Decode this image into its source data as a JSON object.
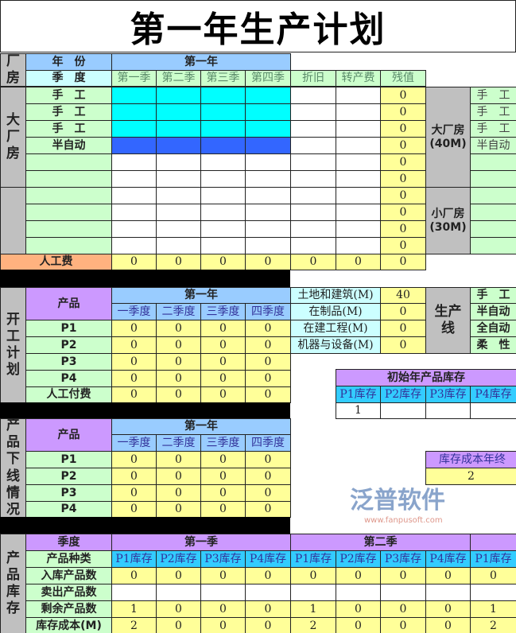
{
  "title": "第一年生产计划",
  "colors": {
    "label_green": "#ccffcc",
    "value_yellow": "#ffff99",
    "header_blue": "#99ccff",
    "light_cyan": "#ccffff",
    "line_cyan": "#00ffff",
    "line_blue": "#3366ff",
    "side_grey": "#c0c0c0",
    "labor_orange": "#ffb27f",
    "purple": "#cc99ff",
    "teal": "#33ccff"
  },
  "factory": {
    "side_label": "厂房",
    "year_label": "年　份",
    "year": "第一年",
    "season_label": "季　度",
    "quarters": [
      "第一季",
      "第二季",
      "第三季",
      "第四季"
    ],
    "depreciation": "折旧",
    "transfer_fee": "转产费",
    "residual": "残值",
    "big_side": "大厂房",
    "rows": [
      "手　工",
      "手　工",
      "手　工",
      "半自动",
      "",
      "",
      "",
      "",
      "",
      ""
    ],
    "residual_values": [
      "0",
      "0",
      "0",
      "0",
      "0",
      "0",
      "0",
      "0",
      "0",
      "0"
    ],
    "labor_label": "人工费",
    "labor_values": [
      "0",
      "0",
      "0",
      "0",
      "0",
      "0",
      "0"
    ],
    "big_room": "大厂房\n(40M)",
    "small_room": "小厂房\n(30M)",
    "right_rows": [
      "手　工",
      "手　工",
      "手　工",
      "半自动",
      "",
      "",
      "",
      "",
      "",
      ""
    ]
  },
  "start_plan": {
    "side_label": "开工计划",
    "product_label": "产品",
    "year": "第一年",
    "quarters": [
      "一季度",
      "二季度",
      "三季度",
      "四季度"
    ],
    "rows": [
      {
        "label": "P1",
        "values": [
          "0",
          "0",
          "0",
          "0"
        ]
      },
      {
        "label": "P2",
        "values": [
          "0",
          "0",
          "0",
          "0"
        ]
      },
      {
        "label": "P3",
        "values": [
          "0",
          "0",
          "0",
          "0"
        ]
      },
      {
        "label": "P4",
        "values": [
          "0",
          "0",
          "0",
          "0"
        ]
      },
      {
        "label": "人工付费",
        "values": [
          "0",
          "0",
          "0",
          "0"
        ]
      }
    ],
    "assets": [
      {
        "label": "土地和建筑(M)",
        "value": "40"
      },
      {
        "label": "在制品(M)",
        "value": "0"
      },
      {
        "label": "在建工程(M)",
        "value": "0"
      },
      {
        "label": "机器与设备(M)",
        "value": "0"
      }
    ],
    "line_label": "生产线",
    "line_types": [
      "手　工",
      "半自动",
      "全自动",
      "柔　性"
    ]
  },
  "initial_inventory": {
    "title": "初始年产品库存",
    "headers": [
      "P1库存",
      "P2库存",
      "P3库存",
      "P4库存"
    ],
    "values": [
      "1",
      "",
      "",
      ""
    ]
  },
  "year_end_cost": {
    "title": "库存成本年终",
    "value": "2"
  },
  "offline": {
    "side_label": "产品下线情况",
    "product_label": "产品",
    "year": "第一年",
    "quarters": [
      "一季度",
      "二季度",
      "三季度",
      "四季度"
    ],
    "rows": [
      {
        "label": "P1",
        "values": [
          "0",
          "0",
          "0",
          "0"
        ]
      },
      {
        "label": "P2",
        "values": [
          "0",
          "0",
          "0",
          "0"
        ]
      },
      {
        "label": "P3",
        "values": [
          "0",
          "0",
          "0",
          "0"
        ]
      },
      {
        "label": "P4",
        "values": [
          "0",
          "0",
          "0",
          "0"
        ]
      }
    ]
  },
  "inventory": {
    "side_label": "产品库存",
    "season_label": "季度",
    "type_label": "产品种类",
    "seasons": [
      "第一季",
      "第二季",
      ""
    ],
    "headers": [
      "P1库存",
      "P2库存",
      "P3库存",
      "P4库存",
      "P1库存",
      "P2库存",
      "P3库存",
      "P4库存",
      "P1库存"
    ],
    "rows": [
      {
        "label": "入库产品数",
        "values": [
          "0",
          "0",
          "0",
          "0",
          "0",
          "0",
          "0",
          "0",
          "0"
        ]
      },
      {
        "label": "卖出产品数",
        "values": [
          "",
          "",
          "",
          "",
          "",
          "",
          "",
          "",
          ""
        ]
      },
      {
        "label": "剩余产品数",
        "values": [
          "1",
          "0",
          "0",
          "0",
          "1",
          "0",
          "0",
          "0",
          "1"
        ]
      },
      {
        "label": "库存成本(M)",
        "values": [
          "2",
          "0",
          "0",
          "0",
          "2",
          "0",
          "0",
          "0",
          "2"
        ]
      }
    ]
  },
  "watermark": {
    "name": "泛普软件",
    "url": "www.fanpusoft.com"
  }
}
